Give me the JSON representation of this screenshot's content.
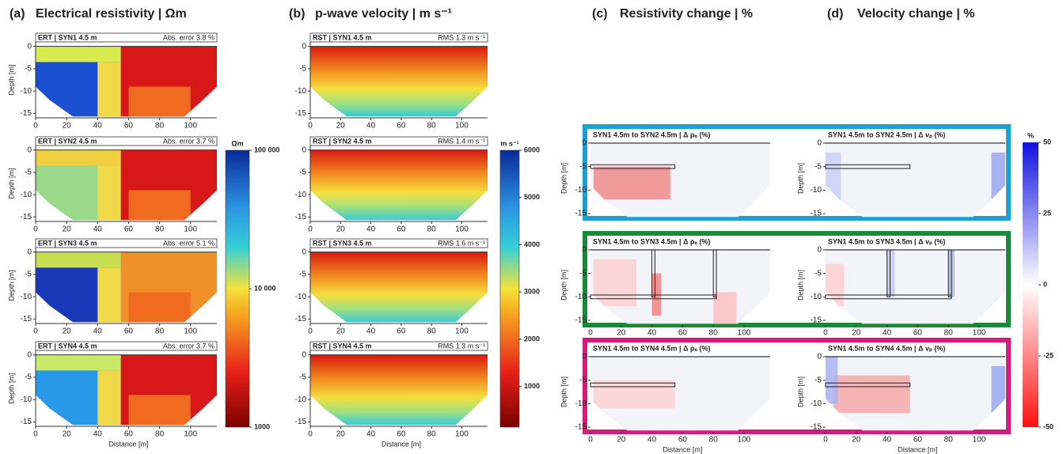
{
  "panels": [
    {
      "label": "(a)",
      "title": "Electrical resistivity | Ωm",
      "subplots": [
        {
          "method": "ERT | SYN1 4.5 m",
          "metric": "Abs. error 3.8 %"
        },
        {
          "method": "ERT | SYN2 4.5 m",
          "metric": "Abs. error 3.7 %"
        },
        {
          "method": "ERT | SYN3 4.5 m",
          "metric": "Abs. error 5.1 %"
        },
        {
          "method": "ERT | SYN4 4.5 m",
          "metric": "Abs. error 3.7 %"
        }
      ],
      "colorbar": {
        "unit": "Ωm",
        "log": true,
        "lim": [
          1000,
          100000
        ],
        "ticks": [
          {
            "value": 100000,
            "label": "100 000"
          },
          {
            "value": 10000,
            "label": "10 000"
          },
          1000
        ]
      }
    },
    {
      "label": "(b)",
      "title": "p-wave velocity | m s⁻¹",
      "subplots": [
        {
          "method": "RST | SYN1 4.5 m",
          "metric": "RMS 1.3 m s⁻¹"
        },
        {
          "method": "RST | SYN2 4.5 m",
          "metric": "RMS 1.4 m s⁻¹"
        },
        {
          "method": "RST | SYN3 4.5 m",
          "metric": "RMS 1.6 m s⁻¹"
        },
        {
          "method": "RST | SYN4 4.5 m",
          "metric": "RMS 1.3 m s⁻¹"
        }
      ],
      "colorbar": {
        "unit": "m s⁻¹",
        "log": false,
        "lim": [
          140,
          6000
        ],
        "ticks": [
          6000,
          5000,
          4000,
          3000,
          2000,
          1000
        ]
      }
    },
    {
      "label": "(c)",
      "title": "Resistivity change | %",
      "subplots": [
        {
          "method": "SYN1 4.5m to SYN2 4.5m | Δ ρₐ (%)"
        },
        {
          "method": "SYN1 4.5m to SYN3 4.5m | Δ ρₐ (%)"
        },
        {
          "method": "SYN1 4.5m to SYN4 4.5m | Δ ρₐ (%)"
        }
      ]
    },
    {
      "label": "(d)",
      "title": "Velocity change | %",
      "subplots": [
        {
          "method": "SYN1 4.5m to SYN2 4.5m | Δ vₚ (%)"
        },
        {
          "method": "SYN1 4.5m to SYN3 4.5m | Δ vₚ (%)"
        },
        {
          "method": "SYN1 4.5m to SYN4 4.5m | Δ vₚ (%)"
        }
      ]
    }
  ],
  "change_colorbar": {
    "unit": "%",
    "lim": [
      -50,
      50
    ],
    "ticks": [
      50,
      25,
      0,
      -25,
      -50
    ]
  },
  "axes": {
    "depth_label": "Depth [m]",
    "distance_label": "Distance [m]",
    "depth_lim": [
      1,
      -16
    ],
    "distance_lim": [
      0,
      117
    ],
    "depth_ticks": [
      0,
      -5,
      -10,
      -15
    ],
    "distance_ticks": [
      0,
      20,
      40,
      60,
      80,
      100
    ]
  }
}
